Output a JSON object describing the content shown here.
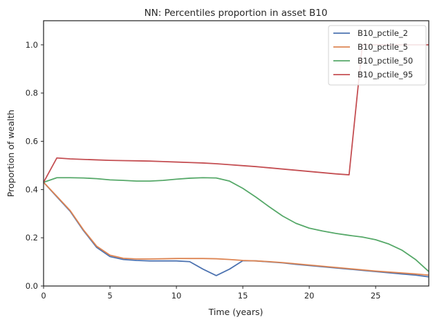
{
  "chart_data": {
    "type": "line",
    "title": "NN: Percentiles proportion in asset B10",
    "xlabel": "Time (years)",
    "ylabel": "Proportion of wealth",
    "xlim": [
      0,
      29
    ],
    "ylim": [
      0,
      1.1
    ],
    "xticks": [
      0,
      5,
      10,
      15,
      20,
      25
    ],
    "yticks": [
      0.0,
      0.2,
      0.4,
      0.6,
      0.8,
      1.0
    ],
    "xtick_labels": [
      "0",
      "5",
      "10",
      "15",
      "20",
      "25"
    ],
    "ytick_labels": [
      "0.0",
      "0.2",
      "0.4",
      "0.6",
      "0.8",
      "1.0"
    ],
    "legend_position": "top-right",
    "grid": false,
    "x": [
      0,
      1,
      2,
      3,
      4,
      5,
      6,
      7,
      8,
      9,
      10,
      11,
      12,
      13,
      14,
      15,
      16,
      17,
      18,
      19,
      20,
      21,
      22,
      23,
      24,
      25,
      26,
      27,
      28,
      29
    ],
    "series": [
      {
        "name": "B10_pctile_2",
        "color": "#4c72b0",
        "values": [
          0.43,
          0.37,
          0.31,
          0.23,
          0.16,
          0.122,
          0.11,
          0.106,
          0.104,
          0.104,
          0.104,
          0.101,
          0.07,
          0.043,
          0.07,
          0.105,
          0.104,
          0.1,
          0.096,
          0.09,
          0.085,
          0.08,
          0.075,
          0.07,
          0.065,
          0.06,
          0.055,
          0.05,
          0.045,
          0.038
        ]
      },
      {
        "name": "B10_pctile_5",
        "color": "#dd8452",
        "values": [
          0.43,
          0.372,
          0.313,
          0.233,
          0.165,
          0.128,
          0.115,
          0.112,
          0.112,
          0.113,
          0.114,
          0.114,
          0.114,
          0.113,
          0.11,
          0.106,
          0.104,
          0.101,
          0.097,
          0.092,
          0.087,
          0.082,
          0.077,
          0.072,
          0.067,
          0.062,
          0.058,
          0.054,
          0.05,
          0.045
        ]
      },
      {
        "name": "B10_pctile_50",
        "color": "#55a868",
        "values": [
          0.43,
          0.449,
          0.449,
          0.448,
          0.445,
          0.44,
          0.438,
          0.435,
          0.435,
          0.438,
          0.443,
          0.447,
          0.449,
          0.448,
          0.435,
          0.405,
          0.368,
          0.328,
          0.29,
          0.26,
          0.24,
          0.228,
          0.218,
          0.21,
          0.203,
          0.192,
          0.174,
          0.148,
          0.11,
          0.06
        ]
      },
      {
        "name": "B10_pctile_95",
        "color": "#c44e52",
        "values": [
          0.43,
          0.531,
          0.527,
          0.525,
          0.523,
          0.521,
          0.52,
          0.519,
          0.518,
          0.516,
          0.514,
          0.512,
          0.51,
          0.507,
          0.503,
          0.499,
          0.495,
          0.49,
          0.485,
          0.48,
          0.475,
          0.47,
          0.465,
          0.461,
          1.0,
          1.0,
          1.0,
          1.0,
          1.0,
          1.0
        ]
      }
    ]
  }
}
